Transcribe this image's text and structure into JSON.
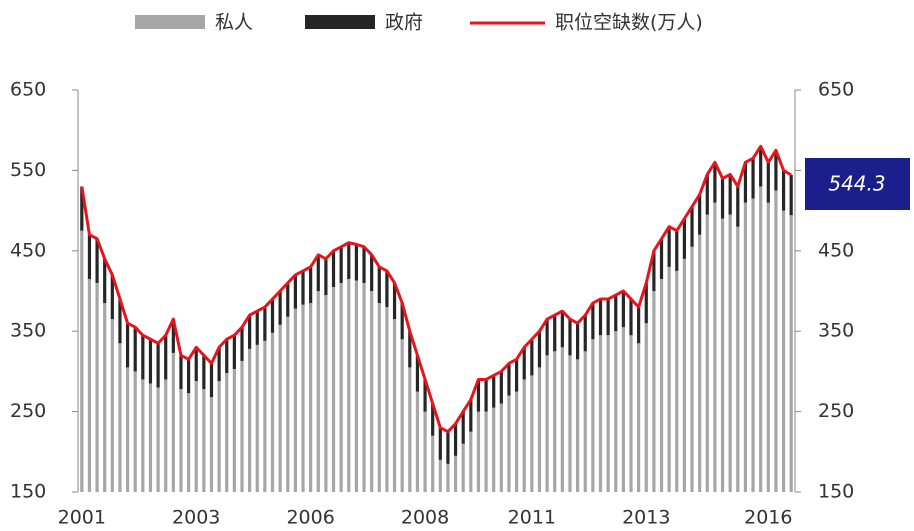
{
  "chart_data": {
    "type": "stacked_bar_line",
    "categories": [
      "2001",
      null,
      null,
      null,
      null,
      null,
      null,
      null,
      null,
      null,
      null,
      null,
      null,
      null,
      null,
      "2003",
      null,
      null,
      null,
      null,
      null,
      null,
      null,
      null,
      null,
      null,
      null,
      null,
      null,
      null,
      "2006",
      null,
      null,
      null,
      null,
      null,
      null,
      null,
      null,
      null,
      null,
      null,
      null,
      null,
      null,
      "2008",
      null,
      null,
      null,
      null,
      null,
      null,
      null,
      null,
      null,
      null,
      null,
      null,
      null,
      "2011",
      null,
      null,
      null,
      null,
      null,
      null,
      null,
      null,
      null,
      null,
      null,
      null,
      null,
      null,
      "2013",
      null,
      null,
      null,
      null,
      null,
      null,
      null,
      null,
      null,
      null,
      null,
      null,
      null,
      null,
      null,
      "2016",
      null,
      null,
      null
    ],
    "series": [
      {
        "name": "私人",
        "color": "#a6a6a6",
        "values": [
          475,
          415,
          410,
          385,
          365,
          335,
          305,
          300,
          290,
          285,
          280,
          290,
          323,
          278,
          273,
          288,
          278,
          268,
          288,
          298,
          303,
          313,
          328,
          333,
          338,
          348,
          358,
          368,
          378,
          383,
          385,
          400,
          395,
          405,
          410,
          415,
          413,
          410,
          400,
          385,
          380,
          365,
          340,
          305,
          275,
          250,
          220,
          190,
          185,
          195,
          210,
          225,
          250,
          250,
          255,
          260,
          270,
          275,
          290,
          295,
          305,
          320,
          325,
          330,
          320,
          315,
          325,
          340,
          345,
          345,
          350,
          355,
          345,
          335,
          360,
          400,
          415,
          430,
          425,
          440,
          455,
          470,
          495,
          510,
          490,
          495,
          480,
          510,
          515,
          530,
          510,
          525,
          500,
          494.3
        ]
      },
      {
        "name": "政府",
        "color": "#262626",
        "values": [
          55,
          55,
          55,
          55,
          55,
          55,
          55,
          55,
          55,
          55,
          55,
          55,
          42,
          42,
          42,
          42,
          42,
          42,
          42,
          42,
          42,
          42,
          42,
          42,
          42,
          42,
          42,
          42,
          42,
          42,
          45,
          45,
          45,
          45,
          45,
          45,
          45,
          45,
          45,
          45,
          45,
          45,
          45,
          45,
          45,
          40,
          40,
          40,
          40,
          40,
          40,
          40,
          40,
          40,
          40,
          40,
          40,
          40,
          40,
          45,
          45,
          45,
          45,
          45,
          45,
          45,
          45,
          45,
          45,
          45,
          45,
          45,
          45,
          45,
          50,
          50,
          50,
          50,
          50,
          50,
          50,
          50,
          50,
          50,
          50,
          50,
          50,
          50,
          50,
          50,
          50,
          50,
          50,
          50
        ]
      },
      {
        "name": "职位空缺数(万人)",
        "color": "#e8141c",
        "values": [
          530,
          470,
          465,
          440,
          420,
          390,
          360,
          355,
          345,
          340,
          335,
          345,
          365,
          320,
          315,
          330,
          320,
          310,
          330,
          340,
          345,
          355,
          370,
          375,
          380,
          390,
          400,
          410,
          420,
          425,
          430,
          445,
          440,
          450,
          455,
          460,
          458,
          455,
          445,
          430,
          425,
          410,
          385,
          350,
          320,
          290,
          260,
          230,
          225,
          235,
          250,
          265,
          290,
          290,
          295,
          300,
          310,
          315,
          330,
          340,
          350,
          365,
          370,
          375,
          365,
          360,
          370,
          385,
          390,
          390,
          395,
          400,
          390,
          380,
          410,
          450,
          465,
          480,
          475,
          490,
          505,
          520,
          545,
          560,
          540,
          545,
          530,
          560,
          565,
          580,
          560,
          575,
          550,
          544.3
        ]
      }
    ],
    "ylim": [
      150,
      650
    ],
    "yticks": [
      150,
      250,
      350,
      450,
      550,
      650
    ],
    "y2lim": [
      150,
      650
    ],
    "y2ticks": [
      150,
      250,
      350,
      450,
      550,
      650
    ]
  }
}
